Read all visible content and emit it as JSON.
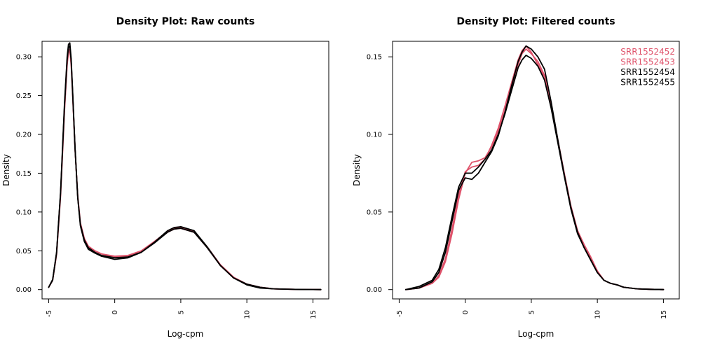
{
  "chart_data": [
    {
      "type": "line",
      "title": "Density Plot: Raw counts",
      "xlabel": "Log-cpm",
      "ylabel": "Density",
      "xlim": [
        -5.5,
        16.2
      ],
      "ylim": [
        -0.012,
        0.32
      ],
      "x_ticks": [
        -5,
        0,
        5,
        10,
        15
      ],
      "x_tick_labels": [
        "-5",
        "0",
        "5",
        "10",
        "15"
      ],
      "y_ticks": [
        0.0,
        0.05,
        0.1,
        0.15,
        0.2,
        0.25,
        0.3
      ],
      "y_tick_labels": [
        "0.00",
        "0.05",
        "0.10",
        "0.15",
        "0.20",
        "0.25",
        "0.30"
      ],
      "grid": false,
      "legend": null,
      "series": [
        {
          "color": "#DF536B",
          "x": [
            -5.0,
            -4.7,
            -4.4,
            -4.1,
            -3.8,
            -3.6,
            -3.5,
            -3.4,
            -3.3,
            -3.2,
            -3.0,
            -2.8,
            -2.6,
            -2.3,
            -2.0,
            -1.5,
            -1.0,
            0.0,
            1.0,
            2.0,
            3.0,
            4.0,
            4.5,
            5.0,
            6.0,
            7.0,
            8.0,
            9.0,
            10.0,
            11.0,
            12.0,
            13.0,
            14.0,
            15.0,
            15.6
          ],
          "y": [
            0.003,
            0.012,
            0.045,
            0.12,
            0.23,
            0.29,
            0.305,
            0.308,
            0.29,
            0.255,
            0.18,
            0.12,
            0.085,
            0.065,
            0.055,
            0.05,
            0.046,
            0.043,
            0.044,
            0.05,
            0.062,
            0.075,
            0.079,
            0.08,
            0.075,
            0.055,
            0.032,
            0.016,
            0.007,
            0.003,
            0.001,
            0.0005,
            0.0002,
            0.0001,
            0.0
          ]
        },
        {
          "color": "#DF536B",
          "x": [
            -5.0,
            -4.7,
            -4.4,
            -4.1,
            -3.8,
            -3.6,
            -3.5,
            -3.4,
            -3.3,
            -3.2,
            -3.0,
            -2.8,
            -2.6,
            -2.3,
            -2.0,
            -1.5,
            -1.0,
            0.0,
            1.0,
            2.0,
            3.0,
            4.0,
            4.5,
            5.0,
            6.0,
            7.0,
            8.0,
            9.0,
            10.0,
            11.0,
            12.0,
            13.0,
            14.0,
            15.0,
            15.6
          ],
          "y": [
            0.003,
            0.012,
            0.046,
            0.122,
            0.232,
            0.292,
            0.308,
            0.31,
            0.292,
            0.256,
            0.181,
            0.121,
            0.086,
            0.066,
            0.056,
            0.05,
            0.046,
            0.042,
            0.043,
            0.049,
            0.061,
            0.074,
            0.078,
            0.079,
            0.074,
            0.054,
            0.031,
            0.015,
            0.007,
            0.003,
            0.001,
            0.0005,
            0.0002,
            0.0001,
            0.0
          ]
        },
        {
          "color": "#000000",
          "x": [
            -5.0,
            -4.7,
            -4.4,
            -4.1,
            -3.8,
            -3.6,
            -3.5,
            -3.4,
            -3.3,
            -3.2,
            -3.0,
            -2.8,
            -2.6,
            -2.3,
            -2.0,
            -1.5,
            -1.0,
            0.0,
            1.0,
            2.0,
            3.0,
            4.0,
            4.5,
            5.0,
            6.0,
            7.0,
            8.0,
            9.0,
            10.0,
            11.0,
            12.0,
            13.0,
            14.0,
            15.0,
            15.6
          ],
          "y": [
            0.003,
            0.013,
            0.048,
            0.126,
            0.24,
            0.3,
            0.316,
            0.318,
            0.298,
            0.26,
            0.182,
            0.118,
            0.082,
            0.062,
            0.052,
            0.047,
            0.043,
            0.039,
            0.041,
            0.048,
            0.061,
            0.076,
            0.08,
            0.081,
            0.076,
            0.055,
            0.031,
            0.015,
            0.006,
            0.002,
            0.001,
            0.0005,
            0.0002,
            0.0001,
            0.0
          ]
        },
        {
          "color": "#000000",
          "x": [
            -5.0,
            -4.7,
            -4.4,
            -4.1,
            -3.8,
            -3.6,
            -3.5,
            -3.4,
            -3.3,
            -3.2,
            -3.0,
            -2.8,
            -2.6,
            -2.3,
            -2.0,
            -1.5,
            -1.0,
            0.0,
            1.0,
            2.0,
            3.0,
            4.0,
            4.5,
            5.0,
            6.0,
            7.0,
            8.0,
            9.0,
            10.0,
            11.0,
            12.0,
            13.0,
            14.0,
            15.0,
            15.6
          ],
          "y": [
            0.003,
            0.012,
            0.047,
            0.124,
            0.236,
            0.296,
            0.312,
            0.314,
            0.295,
            0.258,
            0.181,
            0.119,
            0.084,
            0.064,
            0.054,
            0.048,
            0.044,
            0.041,
            0.042,
            0.048,
            0.06,
            0.074,
            0.078,
            0.079,
            0.074,
            0.054,
            0.031,
            0.015,
            0.007,
            0.003,
            0.001,
            0.0005,
            0.0002,
            0.0001,
            0.0
          ]
        }
      ]
    },
    {
      "type": "line",
      "title": "Density Plot: Filtered counts",
      "xlabel": "Log-cpm",
      "ylabel": "Density",
      "xlim": [
        -5.5,
        16.2
      ],
      "ylim": [
        -0.006,
        0.16
      ],
      "x_ticks": [
        -5,
        0,
        5,
        10,
        15
      ],
      "x_tick_labels": [
        "-5",
        "0",
        "5",
        "10",
        "15"
      ],
      "y_ticks": [
        0.0,
        0.05,
        0.1,
        0.15
      ],
      "y_tick_labels": [
        "0.00",
        "0.05",
        "0.10",
        "0.15"
      ],
      "grid": false,
      "legend": {
        "position": "top-right",
        "entries": [
          {
            "label": "SRR1552452",
            "color": "#DF536B"
          },
          {
            "label": "SRR1552453",
            "color": "#DF536B"
          },
          {
            "label": "SRR1552454",
            "color": "#000000"
          },
          {
            "label": "SRR1552455",
            "color": "#000000"
          }
        ]
      },
      "series": [
        {
          "name": "SRR1552452",
          "color": "#DF536B",
          "x": [
            -4.5,
            -3.5,
            -2.5,
            -2.0,
            -1.5,
            -1.0,
            -0.5,
            0.0,
            0.5,
            1.0,
            1.5,
            2.0,
            2.5,
            3.0,
            3.5,
            4.0,
            4.3,
            4.6,
            5.0,
            5.5,
            6.0,
            6.5,
            7.0,
            7.5,
            8.0,
            8.5,
            9.0,
            9.5,
            10.0,
            10.5,
            11.0,
            11.5,
            12.0,
            13.0,
            14.0,
            15.0
          ],
          "y": [
            0.0,
            0.001,
            0.004,
            0.008,
            0.018,
            0.036,
            0.058,
            0.075,
            0.082,
            0.083,
            0.085,
            0.092,
            0.102,
            0.115,
            0.13,
            0.145,
            0.152,
            0.155,
            0.152,
            0.147,
            0.138,
            0.12,
            0.097,
            0.075,
            0.054,
            0.038,
            0.028,
            0.02,
            0.012,
            0.006,
            0.004,
            0.003,
            0.0015,
            0.0005,
            0.0002,
            0.0
          ]
        },
        {
          "name": "SRR1552453",
          "color": "#DF536B",
          "x": [
            -4.5,
            -3.5,
            -2.5,
            -2.0,
            -1.5,
            -1.0,
            -0.5,
            0.0,
            0.5,
            1.0,
            1.5,
            2.0,
            2.5,
            3.0,
            3.5,
            4.0,
            4.3,
            4.6,
            5.0,
            5.5,
            6.0,
            6.5,
            7.0,
            7.5,
            8.0,
            8.5,
            9.0,
            9.5,
            10.0,
            10.5,
            11.0,
            11.5,
            12.0,
            13.0,
            14.0,
            15.0
          ],
          "y": [
            0.0,
            0.001,
            0.004,
            0.009,
            0.02,
            0.039,
            0.061,
            0.076,
            0.079,
            0.08,
            0.084,
            0.093,
            0.104,
            0.118,
            0.133,
            0.148,
            0.154,
            0.157,
            0.153,
            0.145,
            0.137,
            0.119,
            0.096,
            0.074,
            0.053,
            0.038,
            0.029,
            0.021,
            0.012,
            0.006,
            0.004,
            0.003,
            0.0015,
            0.0005,
            0.0002,
            0.0
          ]
        },
        {
          "name": "SRR1552454",
          "color": "#000000",
          "x": [
            -4.5,
            -3.5,
            -2.5,
            -2.0,
            -1.5,
            -1.0,
            -0.5,
            0.0,
            0.5,
            1.0,
            1.5,
            2.0,
            2.5,
            3.0,
            3.5,
            4.0,
            4.3,
            4.6,
            5.0,
            5.5,
            6.0,
            6.5,
            7.0,
            7.5,
            8.0,
            8.5,
            9.0,
            9.5,
            10.0,
            10.5,
            11.0,
            11.5,
            12.0,
            13.0,
            14.0,
            15.0
          ],
          "y": [
            0.0,
            0.002,
            0.006,
            0.013,
            0.027,
            0.047,
            0.066,
            0.075,
            0.075,
            0.079,
            0.084,
            0.09,
            0.1,
            0.113,
            0.128,
            0.143,
            0.148,
            0.151,
            0.149,
            0.144,
            0.135,
            0.117,
            0.095,
            0.073,
            0.052,
            0.036,
            0.027,
            0.019,
            0.011,
            0.006,
            0.004,
            0.003,
            0.0015,
            0.0005,
            0.0002,
            0.0
          ]
        },
        {
          "name": "SRR1552455",
          "color": "#000000",
          "x": [
            -4.5,
            -3.5,
            -2.5,
            -2.0,
            -1.5,
            -1.0,
            -0.5,
            0.0,
            0.5,
            1.0,
            1.5,
            2.0,
            2.5,
            3.0,
            3.5,
            4.0,
            4.3,
            4.6,
            5.0,
            5.5,
            6.0,
            6.5,
            7.0,
            7.5,
            8.0,
            8.5,
            9.0,
            9.5,
            10.0,
            10.5,
            11.0,
            11.5,
            12.0,
            13.0,
            14.0,
            15.0
          ],
          "y": [
            0.0,
            0.001,
            0.005,
            0.011,
            0.024,
            0.044,
            0.064,
            0.072,
            0.071,
            0.075,
            0.082,
            0.089,
            0.099,
            0.114,
            0.131,
            0.147,
            0.153,
            0.157,
            0.155,
            0.15,
            0.142,
            0.121,
            0.097,
            0.074,
            0.053,
            0.037,
            0.027,
            0.019,
            0.011,
            0.006,
            0.004,
            0.003,
            0.0015,
            0.0005,
            0.0002,
            0.0
          ]
        }
      ]
    }
  ]
}
